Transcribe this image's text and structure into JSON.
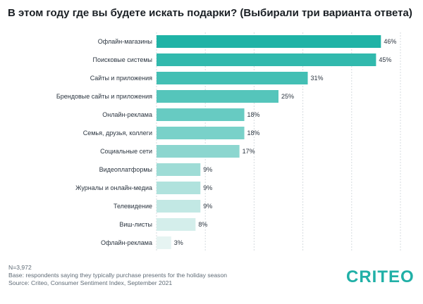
{
  "title": "В этом году где вы будете искать подарки? (Выбирали три варианта ответа)",
  "footnotes": {
    "sample": "N=3,972",
    "base": "Base: respondents saying they typically purchase presents for the holiday season",
    "source": "Source: Criteo, Consumer Sentiment Index, September 2021"
  },
  "logo": {
    "text": "CRITEO",
    "color": "#21B0A7"
  },
  "colors": {
    "bar_start": "#1FB3A6",
    "bar_end": "#E6F4F2",
    "grid": "#D5DBDF"
  },
  "chart_data": {
    "type": "bar",
    "orientation": "horizontal",
    "title": "В этом году где вы будете искать подарки? (Выбирали три варианта ответа)",
    "xlabel": "",
    "ylabel": "",
    "xlim": [
      0,
      50
    ],
    "grid": true,
    "categories": [
      "Офлайн-магазины",
      "Поисковые системы",
      "Сайты и приложения",
      "Брендовые сайты и приложения",
      "Онлайн-реклама",
      "Семья, друзья, коллеги",
      "Социальные сети",
      "Видеоплатформы",
      "Журналы и онлайн-медиа",
      "Телевидение",
      "Виш-листы",
      "Офлайн-реклама"
    ],
    "values": [
      46,
      45,
      31,
      25,
      18,
      18,
      17,
      9,
      9,
      9,
      8,
      3
    ],
    "value_labels": [
      "46%",
      "45%",
      "31%",
      "25%",
      "18%",
      "18%",
      "17%",
      "9%",
      "9%",
      "9%",
      "8%",
      "3%"
    ]
  }
}
